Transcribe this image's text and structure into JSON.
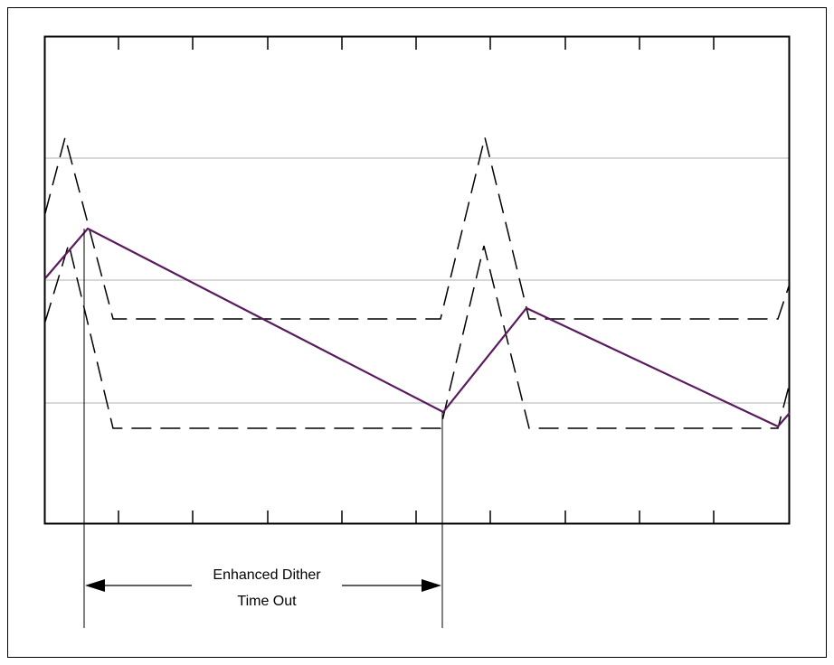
{
  "annotation": {
    "line1": "Enhanced Dither",
    "line2": "Time Out"
  },
  "colors": {
    "frame": "#000000",
    "gridline": "#c0c0c0",
    "dashed_waveform": "#000000",
    "solid_waveform": "#5a1a5e",
    "background": "#ffffff"
  }
}
